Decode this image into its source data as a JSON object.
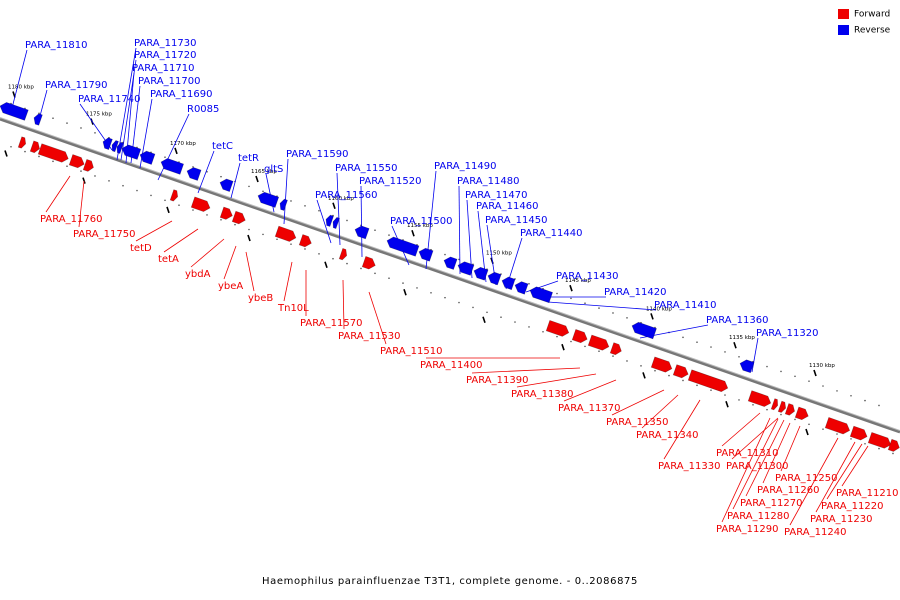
{
  "caption": "Haemophilus parainfluenzae T3T1, complete genome. - 0..2086875",
  "legend": [
    {
      "label": "Forward",
      "color": "#ee0000"
    },
    {
      "label": "Reverse",
      "color": "#0000ee"
    }
  ],
  "colors": {
    "forward": "#ee0000",
    "reverse": "#0000ee",
    "backbone": "#777777"
  },
  "ticks": [
    "1180 kbp",
    "1175 kbp",
    "1170 kbp",
    "1165 kbp",
    "1160 kbp",
    "1155 kbp",
    "1150 kbp",
    "1145 kbp",
    "1140 kbp",
    "1135 kbp",
    "1130 kbp"
  ],
  "reverse_labels": [
    "PARA_11810",
    "PARA_11790",
    "PARA_11740",
    "PARA_11730",
    "PARA_11720",
    "PARA_11710",
    "PARA_11700",
    "PARA_11690",
    "R0085",
    "tetC",
    "tetR",
    "gltS",
    "PARA_11590",
    "PARA_11560",
    "PARA_11550",
    "PARA_11520",
    "PARA_11500",
    "PARA_11490",
    "PARA_11480",
    "PARA_11470",
    "PARA_11460",
    "PARA_11450",
    "PARA_11440",
    "PARA_11430",
    "PARA_11420",
    "PARA_11410",
    "PARA_11360",
    "PARA_11320"
  ],
  "forward_labels": [
    "PARA_11760",
    "PARA_11750",
    "tetD",
    "tetA",
    "ybdA",
    "ybeA",
    "ybeB",
    "Tn10L",
    "PARA_11570",
    "PARA_11530",
    "PARA_11510",
    "PARA_11400",
    "PARA_11390",
    "PARA_11380",
    "PARA_11370",
    "PARA_11350",
    "PARA_11340",
    "PARA_11330",
    "PARA_11310",
    "PARA_11300",
    "PARA_11250",
    "PARA_11260",
    "PARA_11270",
    "PARA_11280",
    "PARA_11290",
    "PARA_11210",
    "PARA_11220",
    "PARA_11230",
    "PARA_11240"
  ]
}
